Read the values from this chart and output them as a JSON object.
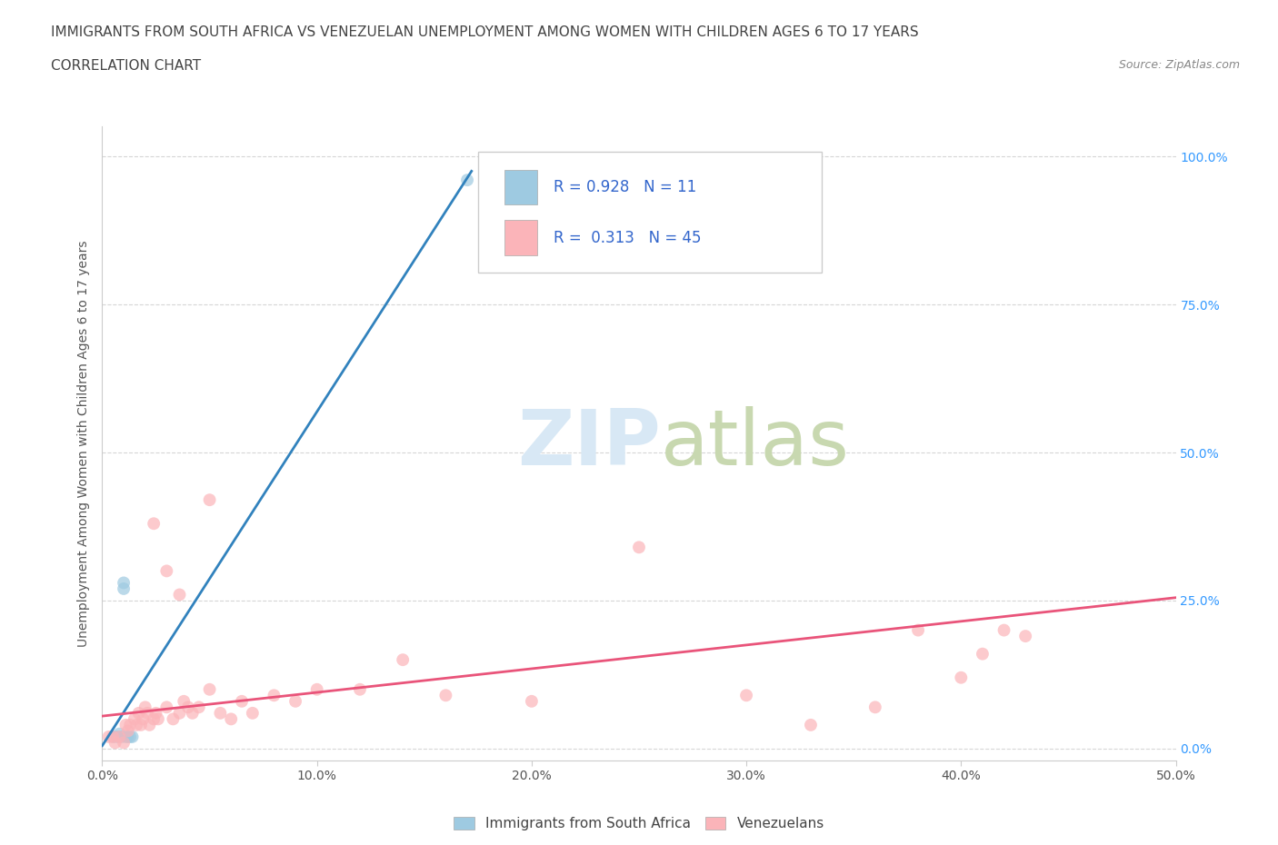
{
  "title_line1": "IMMIGRANTS FROM SOUTH AFRICA VS VENEZUELAN UNEMPLOYMENT AMONG WOMEN WITH CHILDREN AGES 6 TO 17 YEARS",
  "title_line2": "CORRELATION CHART",
  "source": "Source: ZipAtlas.com",
  "ylabel": "Unemployment Among Women with Children Ages 6 to 17 years",
  "xlim": [
    0.0,
    0.5
  ],
  "ylim": [
    -0.02,
    1.05
  ],
  "xticks": [
    0.0,
    0.1,
    0.2,
    0.3,
    0.4,
    0.5
  ],
  "xticklabels": [
    "0.0%",
    "10.0%",
    "20.0%",
    "30.0%",
    "40.0%",
    "50.0%"
  ],
  "ytick_positions": [
    0.0,
    0.25,
    0.5,
    0.75,
    1.0
  ],
  "ytick_labels_right": [
    "0.0%",
    "25.0%",
    "50.0%",
    "75.0%",
    "100.0%"
  ],
  "blue_scatter_x": [
    0.005,
    0.007,
    0.008,
    0.009,
    0.01,
    0.01,
    0.011,
    0.012,
    0.013,
    0.014,
    0.17
  ],
  "blue_scatter_y": [
    0.02,
    0.02,
    0.025,
    0.02,
    0.28,
    0.27,
    0.02,
    0.02,
    0.02,
    0.02,
    0.96
  ],
  "pink_scatter_x": [
    0.003,
    0.005,
    0.006,
    0.008,
    0.01,
    0.011,
    0.012,
    0.013,
    0.015,
    0.016,
    0.017,
    0.018,
    0.019,
    0.02,
    0.021,
    0.022,
    0.024,
    0.025,
    0.026,
    0.03,
    0.033,
    0.036,
    0.038,
    0.04,
    0.042,
    0.045,
    0.05,
    0.055,
    0.06,
    0.065,
    0.07,
    0.08,
    0.09,
    0.1,
    0.12,
    0.14,
    0.16,
    0.2,
    0.25,
    0.3,
    0.33,
    0.36,
    0.4,
    0.42,
    0.43
  ],
  "pink_scatter_y": [
    0.02,
    0.02,
    0.01,
    0.02,
    0.01,
    0.04,
    0.03,
    0.04,
    0.05,
    0.04,
    0.06,
    0.04,
    0.05,
    0.07,
    0.06,
    0.04,
    0.05,
    0.06,
    0.05,
    0.07,
    0.05,
    0.06,
    0.08,
    0.07,
    0.06,
    0.07,
    0.1,
    0.06,
    0.05,
    0.08,
    0.06,
    0.09,
    0.08,
    0.1,
    0.1,
    0.15,
    0.09,
    0.08,
    0.34,
    0.09,
    0.04,
    0.07,
    0.12,
    0.2,
    0.19
  ],
  "pink_scatter_x2": [
    0.024,
    0.03,
    0.036,
    0.05,
    0.38,
    0.41
  ],
  "pink_scatter_y2": [
    0.38,
    0.3,
    0.26,
    0.42,
    0.2,
    0.16
  ],
  "blue_line_x": [
    0.0,
    0.172
  ],
  "blue_line_y": [
    0.005,
    0.975
  ],
  "pink_line_x": [
    0.0,
    0.5
  ],
  "pink_line_y": [
    0.055,
    0.255
  ],
  "blue_color": "#9ecae1",
  "blue_line_color": "#3182bd",
  "pink_color": "#fbb4b9",
  "pink_line_color": "#e9547a",
  "R_blue": 0.928,
  "N_blue": 11,
  "R_pink": 0.313,
  "N_pink": 45,
  "watermark_zip": "ZIP",
  "watermark_atlas": "atlas",
  "legend1_label": "Immigrants from South Africa",
  "legend2_label": "Venezuelans",
  "grid_color": "#cccccc",
  "background_color": "#ffffff",
  "title_fontsize": 11,
  "axis_label_fontsize": 10,
  "tick_fontsize": 10,
  "marker_size": 100
}
